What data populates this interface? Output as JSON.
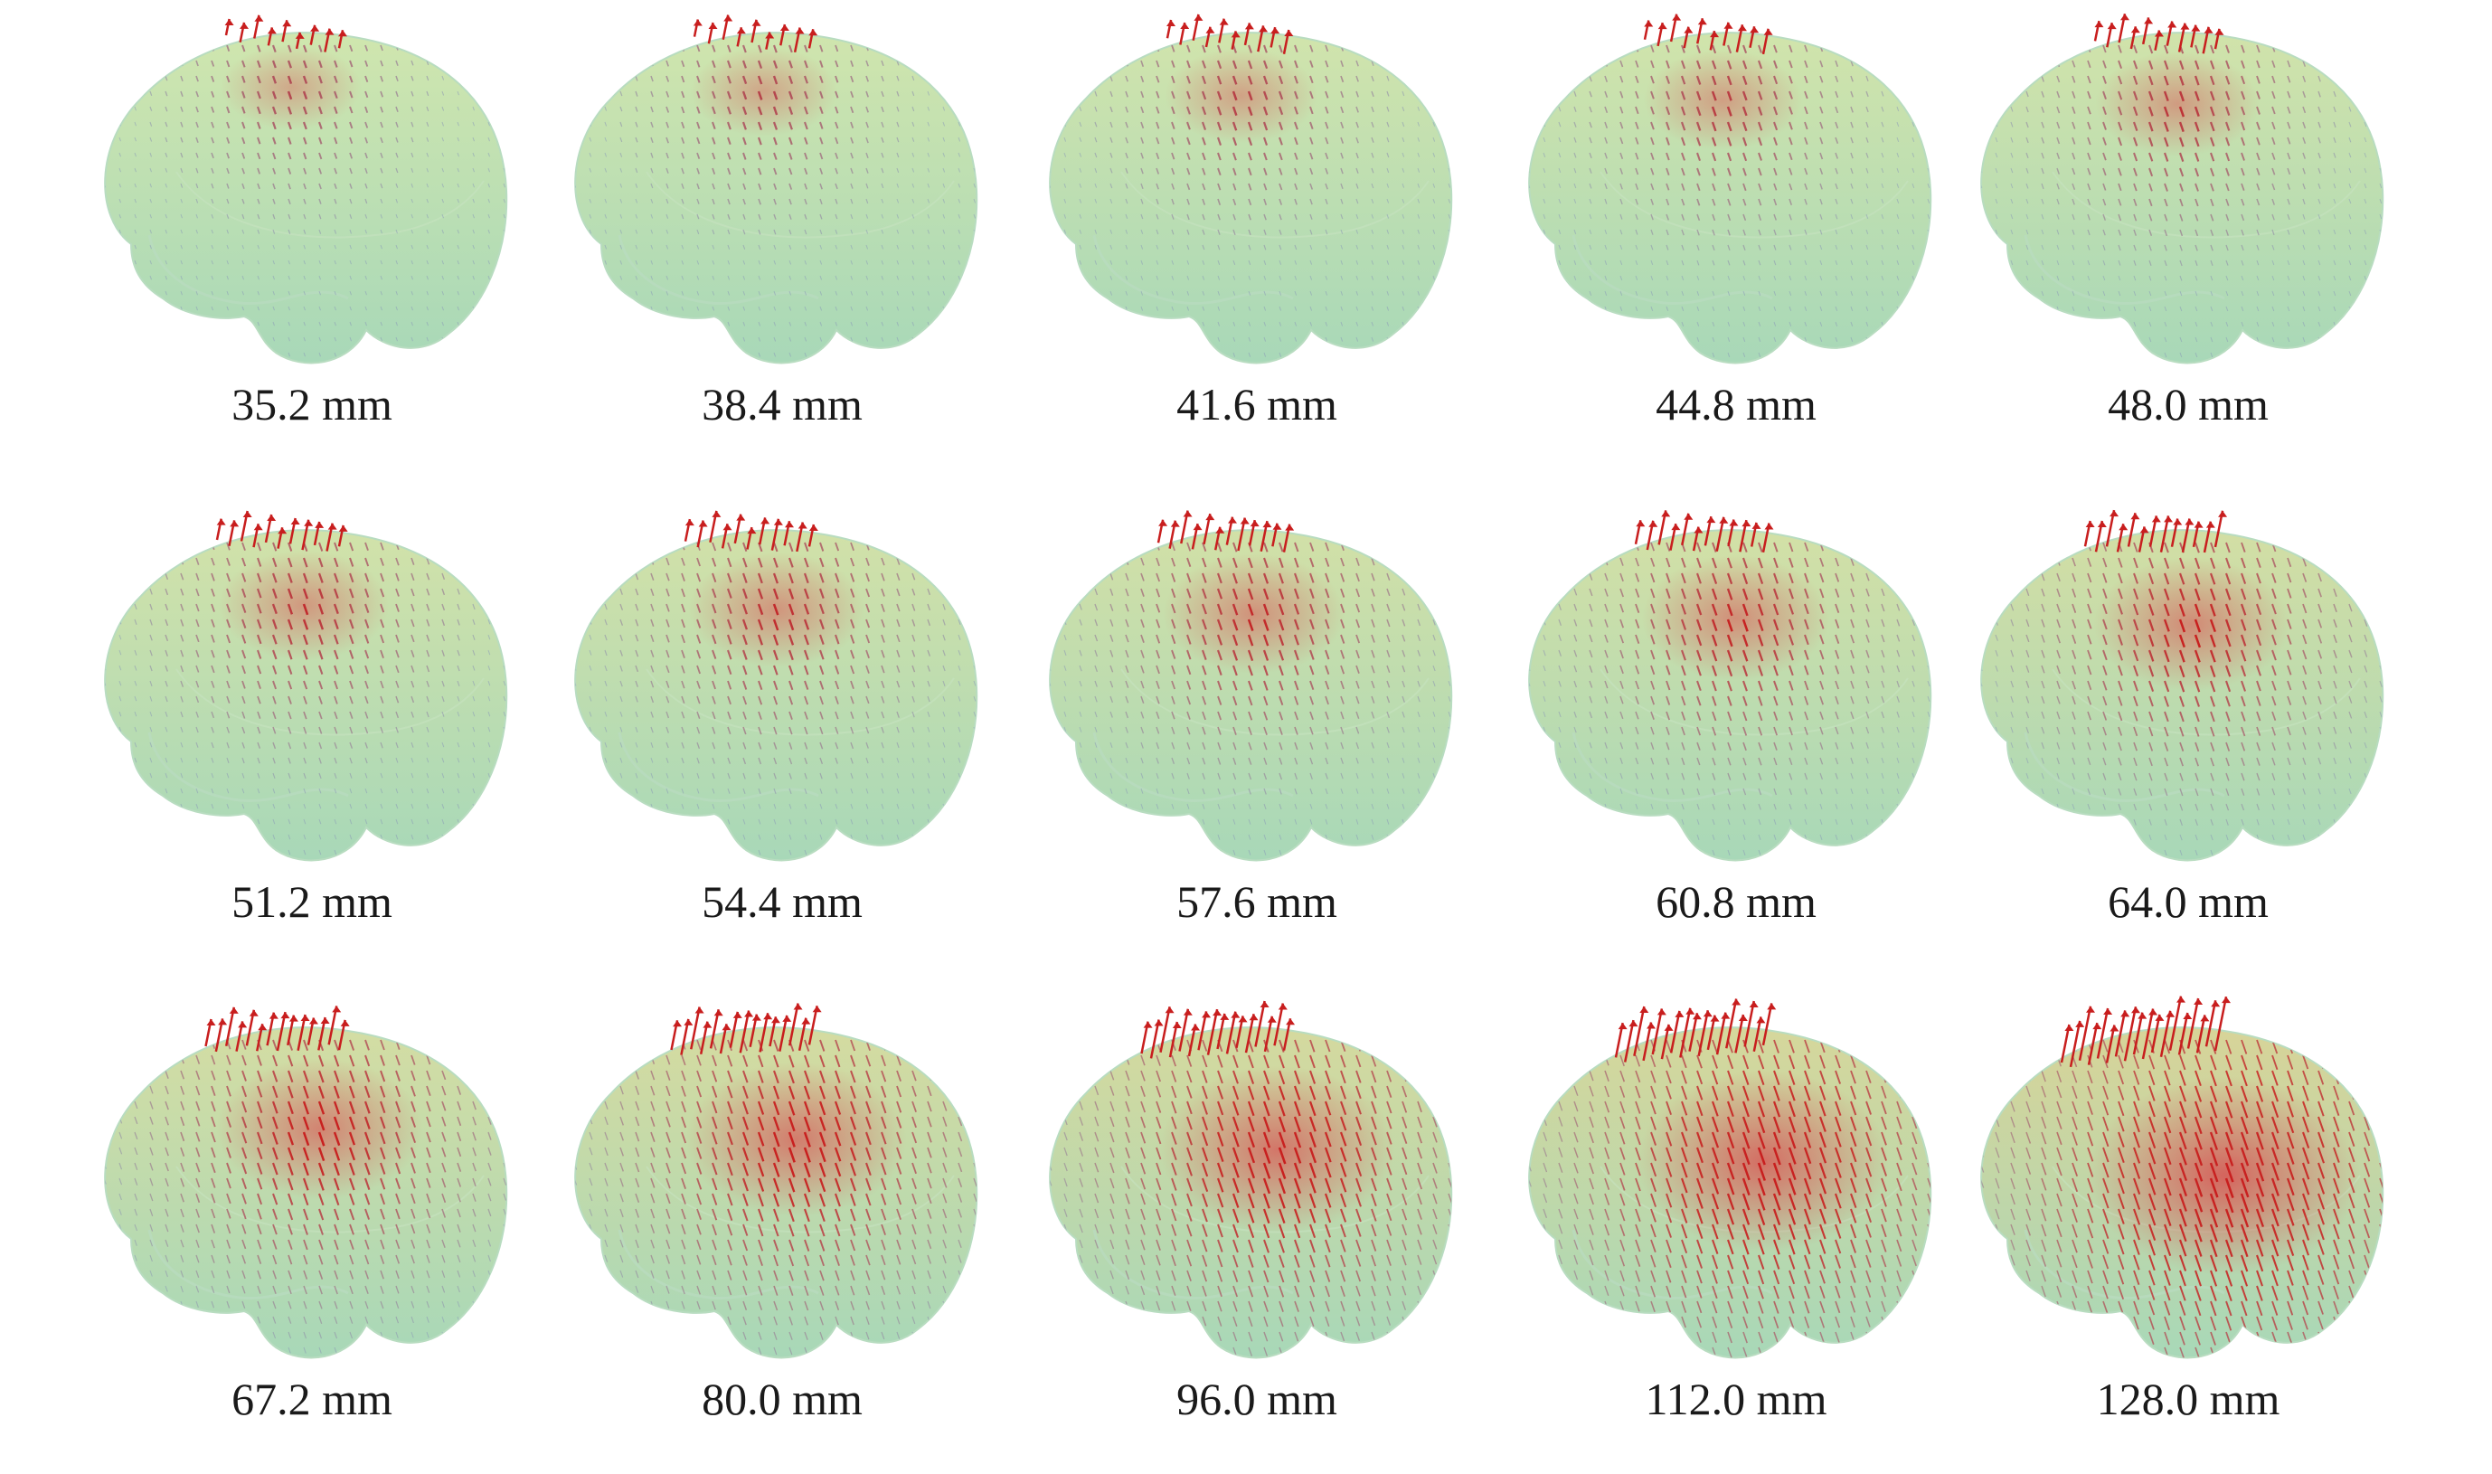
{
  "figure": {
    "panels": [
      {
        "label": "35.2 mm",
        "intensity": 0.1
      },
      {
        "label": "38.4 mm",
        "intensity": 0.14
      },
      {
        "label": "41.6 mm",
        "intensity": 0.18
      },
      {
        "label": "44.8 mm",
        "intensity": 0.22
      },
      {
        "label": "48.0 mm",
        "intensity": 0.26
      },
      {
        "label": "51.2 mm",
        "intensity": 0.3
      },
      {
        "label": "54.4 mm",
        "intensity": 0.34
      },
      {
        "label": "57.6 mm",
        "intensity": 0.38
      },
      {
        "label": "60.8 mm",
        "intensity": 0.42
      },
      {
        "label": "64.0 mm",
        "intensity": 0.48
      },
      {
        "label": "67.2 mm",
        "intensity": 0.55
      },
      {
        "label": "80.0 mm",
        "intensity": 0.65
      },
      {
        "label": "96.0 mm",
        "intensity": 0.75
      },
      {
        "label": "112.0 mm",
        "intensity": 0.86
      },
      {
        "label": "128.0 mm",
        "intensity": 1.0
      }
    ],
    "colors": {
      "surface": "#cfe8b0",
      "surface_edge": "#a8d8b8",
      "arrow_hot": "#c81e1e",
      "arrow_cool": "#8a9ab8",
      "highlight": "#d85050"
    }
  }
}
